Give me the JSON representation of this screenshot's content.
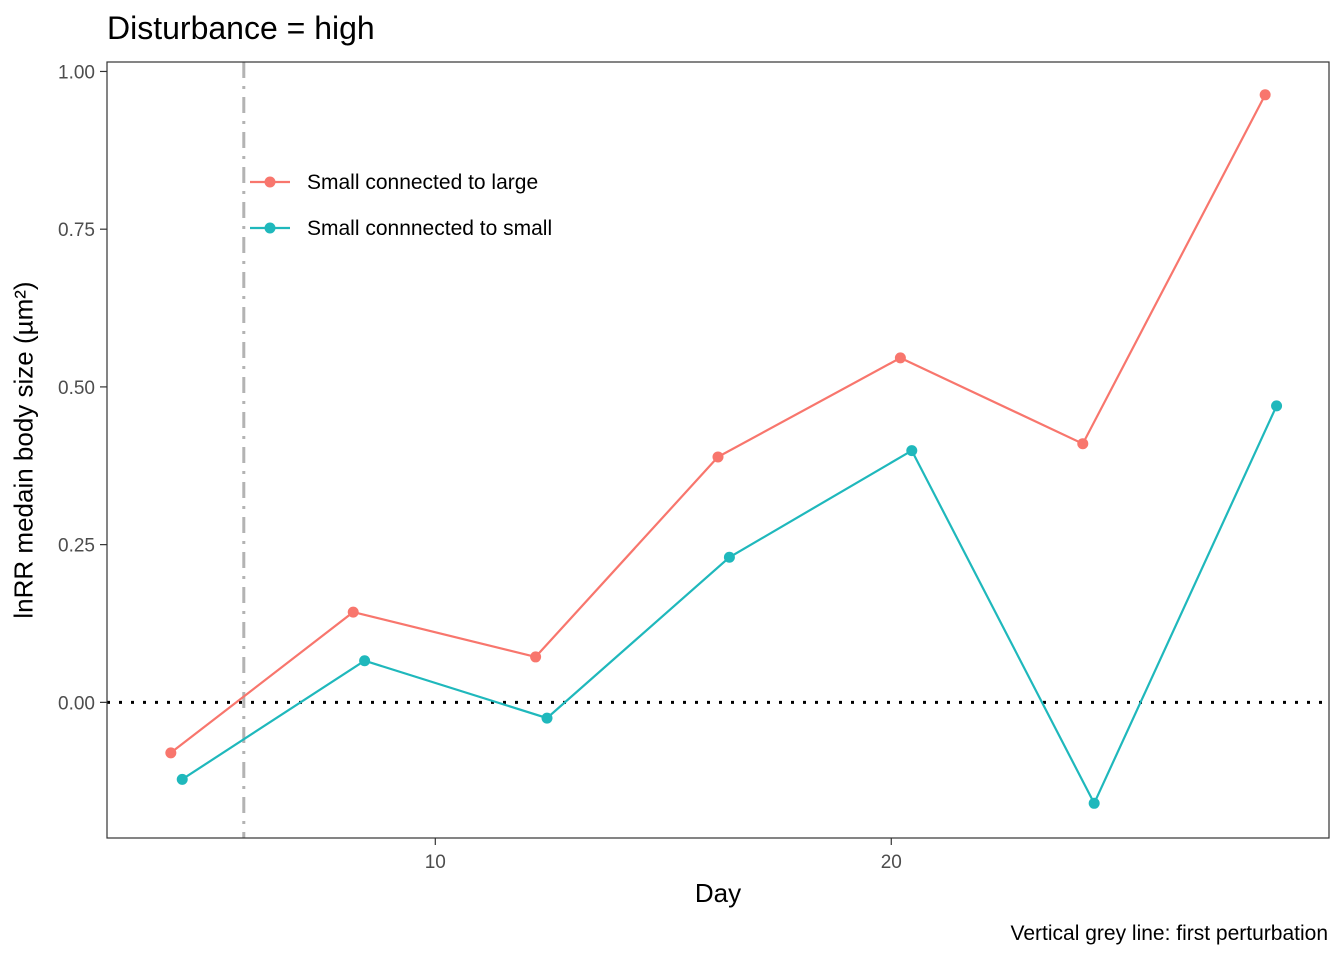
{
  "chart_data": {
    "type": "line",
    "title": "Disturbance = high",
    "xlabel": "Day",
    "ylabel": "lnRR medain body size (µm²)",
    "caption": "Vertical grey line: first perturbation",
    "xlim": [
      2.8,
      29.6
    ],
    "ylim": [
      -0.215,
      1.015
    ],
    "x_ticks": [
      10,
      20
    ],
    "y_ticks": [
      0.0,
      0.25,
      0.5,
      0.75,
      1.0
    ],
    "y_tick_labels": [
      "0.00",
      "0.25",
      "0.50",
      "0.75",
      "1.00"
    ],
    "grid": false,
    "hline": {
      "y": 0,
      "style": "dotted",
      "color": "#000000"
    },
    "vline": {
      "x": 5.8,
      "style": "dashdot",
      "color": "#b3b3b3"
    },
    "legend_position": "top-left",
    "series": [
      {
        "name": "Small connected to large",
        "color": "#F8766D",
        "x": [
          4.2,
          8.2,
          12.2,
          16.2,
          20.2,
          24.2,
          28.2
        ],
        "y": [
          -0.08,
          0.143,
          0.072,
          0.389,
          0.546,
          0.41,
          0.963
        ]
      },
      {
        "name": "Small connnected to small",
        "color": "#1FB8BC",
        "x": [
          4.45,
          8.45,
          12.45,
          16.45,
          20.45,
          24.45,
          28.45
        ],
        "y": [
          -0.122,
          0.066,
          -0.025,
          0.23,
          0.399,
          -0.16,
          0.47
        ]
      }
    ]
  }
}
